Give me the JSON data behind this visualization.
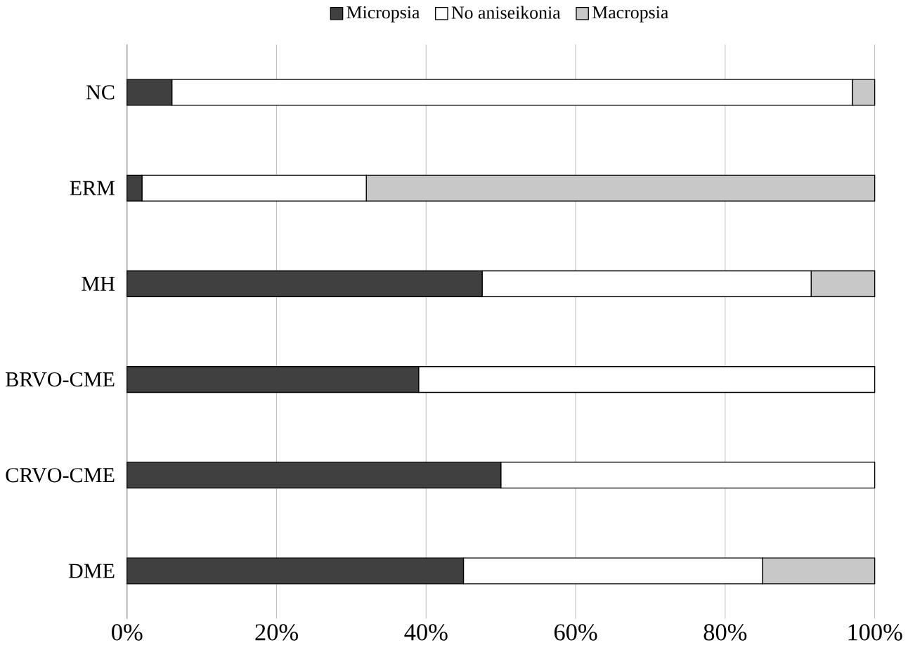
{
  "chart_data": {
    "type": "bar",
    "orientation": "horizontal",
    "stacked": true,
    "categories": [
      "NC",
      "ERM",
      "MH",
      "BRVO-CME",
      "CRVO-CME",
      "DME"
    ],
    "series": [
      {
        "name": "Micropsia",
        "color": "#404040",
        "values": [
          6,
          2,
          47.5,
          39,
          50,
          45
        ]
      },
      {
        "name": "No aniseikonia",
        "color": "#ffffff",
        "values": [
          91,
          30,
          44,
          61,
          50,
          40
        ]
      },
      {
        "name": "Macropsia",
        "color": "#c8c8c8",
        "values": [
          3,
          68,
          8.5,
          0,
          0,
          15
        ]
      }
    ],
    "xlim": [
      0,
      100
    ],
    "xticks": [
      {
        "value": 0,
        "label": "0%"
      },
      {
        "value": 20,
        "label": "20%"
      },
      {
        "value": 40,
        "label": "40%"
      },
      {
        "value": 60,
        "label": "60%"
      },
      {
        "value": 80,
        "label": "80%"
      },
      {
        "value": 100,
        "label": "100%"
      }
    ],
    "grid": "x",
    "legend": "top"
  }
}
